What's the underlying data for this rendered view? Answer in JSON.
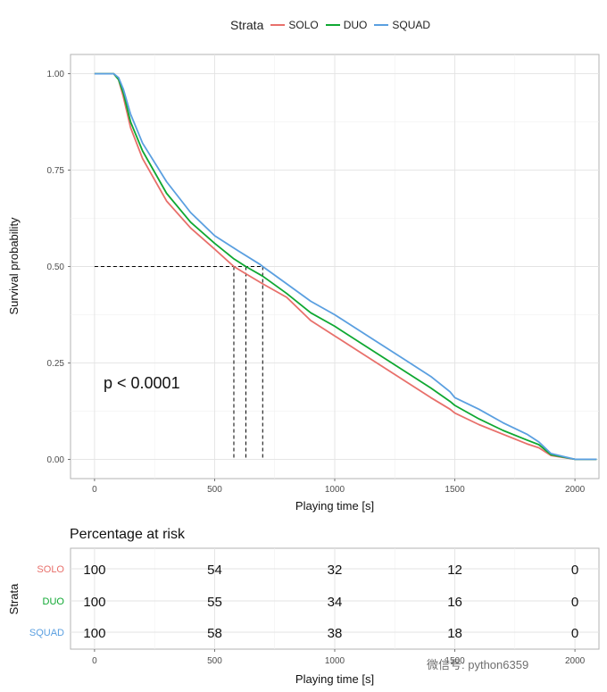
{
  "chart_data": [
    {
      "type": "line",
      "subtype": "kaplan-meier survival curves",
      "legend": {
        "title": "Strata",
        "position": "top",
        "entries": [
          "SOLO",
          "DUO",
          "SQUAD"
        ]
      },
      "xlabel": "Playing time [s]",
      "ylabel": "Survival probability",
      "xlim": [
        -100,
        2100
      ],
      "ylim": [
        -0.05,
        1.05
      ],
      "x_ticks": [
        "0",
        "500",
        "1000",
        "1500",
        "2000"
      ],
      "y_ticks": [
        "0.00",
        "0.25",
        "0.50",
        "0.75",
        "1.00"
      ],
      "grid": true,
      "annotation": "p < 0.0001",
      "series": [
        {
          "name": "SOLO",
          "color": "#e8706b",
          "x": [
            0,
            80,
            100,
            120,
            150,
            200,
            300,
            400,
            500,
            580,
            620,
            700,
            800,
            900,
            1000,
            1100,
            1200,
            1300,
            1400,
            1480,
            1500,
            1600,
            1700,
            1800,
            1850,
            1900,
            2000,
            2090
          ],
          "y": [
            1.0,
            1.0,
            0.985,
            0.94,
            0.86,
            0.78,
            0.67,
            0.6,
            0.545,
            0.5,
            0.485,
            0.455,
            0.42,
            0.36,
            0.32,
            0.28,
            0.24,
            0.2,
            0.16,
            0.13,
            0.12,
            0.09,
            0.065,
            0.04,
            0.03,
            0.01,
            0.0,
            0.0
          ]
        },
        {
          "name": "DUO",
          "color": "#0fa832",
          "x": [
            0,
            80,
            100,
            120,
            150,
            200,
            300,
            400,
            500,
            580,
            630,
            700,
            800,
            900,
            1000,
            1100,
            1200,
            1300,
            1400,
            1480,
            1500,
            1600,
            1700,
            1800,
            1850,
            1900,
            2000,
            2090
          ],
          "y": [
            1.0,
            1.0,
            0.985,
            0.95,
            0.875,
            0.8,
            0.69,
            0.615,
            0.56,
            0.52,
            0.5,
            0.475,
            0.43,
            0.38,
            0.345,
            0.305,
            0.265,
            0.225,
            0.185,
            0.15,
            0.14,
            0.105,
            0.075,
            0.05,
            0.038,
            0.012,
            0.0,
            0.0
          ]
        },
        {
          "name": "SQUAD",
          "color": "#5a9fe0",
          "x": [
            0,
            80,
            100,
            120,
            150,
            200,
            300,
            400,
            500,
            600,
            690,
            700,
            800,
            900,
            1000,
            1100,
            1200,
            1300,
            1400,
            1480,
            1500,
            1600,
            1700,
            1800,
            1850,
            1900,
            2000,
            2090
          ],
          "y": [
            1.0,
            1.0,
            0.99,
            0.96,
            0.895,
            0.82,
            0.72,
            0.64,
            0.58,
            0.54,
            0.505,
            0.5,
            0.455,
            0.41,
            0.375,
            0.335,
            0.295,
            0.255,
            0.215,
            0.175,
            0.16,
            0.13,
            0.095,
            0.065,
            0.045,
            0.015,
            0.0,
            0.0
          ]
        }
      ],
      "median_lines": [
        {
          "x": 580,
          "y": 0.5
        },
        {
          "x": 630,
          "y": 0.5
        },
        {
          "x": 700,
          "y": 0.5
        }
      ]
    },
    {
      "type": "table",
      "title": "Percentage at risk",
      "ylabel": "Strata",
      "xlabel": "Playing time [s]",
      "x_ticks": [
        "0",
        "500",
        "1000",
        "1500",
        "2000"
      ],
      "x_values": [
        0,
        500,
        1000,
        1500,
        2000
      ],
      "rows": [
        {
          "name": "SOLO",
          "color": "#e8706b",
          "values": [
            "100",
            "54",
            "32",
            "12",
            "0"
          ]
        },
        {
          "name": "DUO",
          "color": "#0fa832",
          "values": [
            "100",
            "55",
            "34",
            "16",
            "0"
          ]
        },
        {
          "name": "SQUAD",
          "color": "#5a9fe0",
          "values": [
            "100",
            "58",
            "38",
            "18",
            "0"
          ]
        }
      ]
    }
  ],
  "watermark": "微信号: python6359"
}
